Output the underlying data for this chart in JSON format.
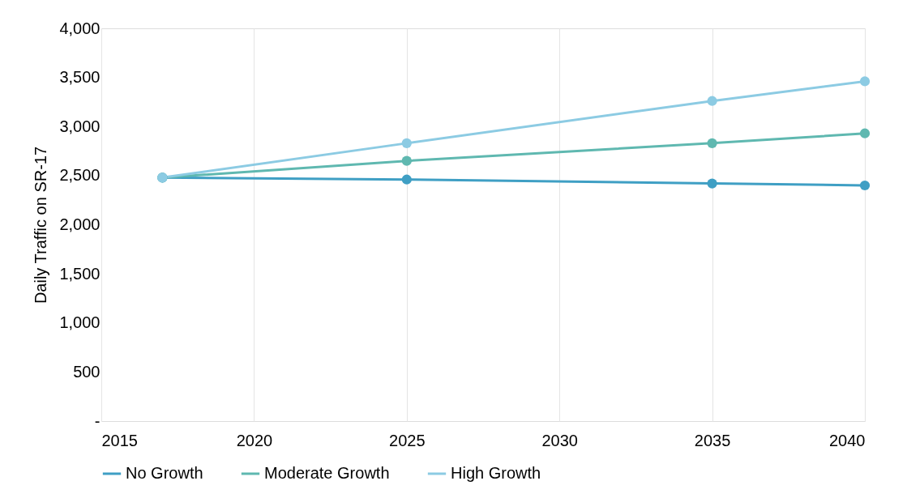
{
  "chart_data": {
    "type": "line",
    "ylabel": "Daily Traffic on SR-17",
    "x": [
      2017,
      2025,
      2035,
      2040
    ],
    "series": [
      {
        "name": "No Growth",
        "color": "#3f9fc4",
        "values": [
          2480,
          2460,
          2420,
          2400
        ]
      },
      {
        "name": "Moderate Growth",
        "color": "#5fb8b0",
        "values": [
          2480,
          2650,
          2830,
          2930
        ]
      },
      {
        "name": "High Growth",
        "color": "#8ccbe3",
        "values": [
          2480,
          2830,
          3260,
          3460
        ]
      }
    ],
    "xlim": [
      2015,
      2040
    ],
    "xticks": [
      2015,
      2020,
      2025,
      2030,
      2035,
      2040
    ],
    "ylim": [
      0,
      4000
    ],
    "yticks": [
      {
        "value": 0,
        "label": "-"
      },
      500,
      {
        "value": 1000,
        "label": "1,000"
      },
      {
        "value": 1500,
        "label": "1,500"
      },
      {
        "value": 2000,
        "label": "2,000"
      },
      {
        "value": 2500,
        "label": "2,500"
      },
      {
        "value": 3000,
        "label": "3,000"
      },
      {
        "value": 3500,
        "label": "3,500"
      },
      {
        "value": 4000,
        "label": "4,000"
      }
    ],
    "grid": "x",
    "legend": "bottom",
    "marker": "circle",
    "line_style": "solid"
  }
}
